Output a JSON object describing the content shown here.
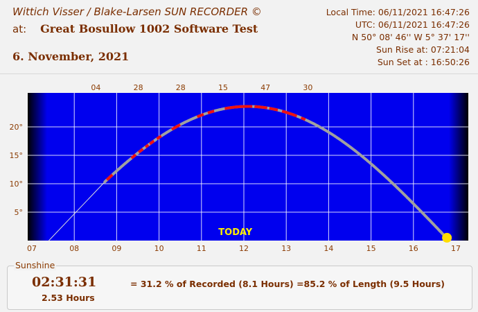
{
  "header": {
    "title_line1": "Wittich  Visser / Blake-Larsen SUN RECORDER ©",
    "at_label": "at:",
    "location": "Great Bosullow 1002  Software Test",
    "date": "6. November, 2021"
  },
  "info": {
    "local_time": "Local Time: 06/11/2021 16:47:26",
    "utc": "UTC: 06/11/2021 16:47:26",
    "coords": "N 50° 08' 46''     W 5° 37' 17''",
    "sunrise": "Sun Rise at:  07:21:04",
    "sunset": "Sun Set at :  16:50:26"
  },
  "chart_data": {
    "type": "line",
    "x_ticks": [
      "07",
      "08",
      "09",
      "10",
      "11",
      "12",
      "13",
      "14",
      "15",
      "16",
      "17"
    ],
    "y_ticks": [
      "5°",
      "10°",
      "15°",
      "20°"
    ],
    "top_labels": [
      {
        "hour": 9.0,
        "text": "04"
      },
      {
        "hour": 10.0,
        "text": "28"
      },
      {
        "hour": 11.0,
        "text": "28"
      },
      {
        "hour": 12.0,
        "text": "15"
      },
      {
        "hour": 13.0,
        "text": "47"
      },
      {
        "hour": 14.0,
        "text": "30"
      }
    ],
    "xlim": [
      7,
      17
    ],
    "ylim": [
      0,
      24
    ],
    "grid": true,
    "today_label": "TODAY",
    "colors": {
      "plot_bg": "#0000ee",
      "night": "#000000",
      "path": "#a0a0a0",
      "recorded": "#ee1111",
      "sun": "#ffdd00",
      "grid": "#ffffff",
      "axis_text": "#8a3a00",
      "today": "#ffee00"
    },
    "sun_path": {
      "rise_hour": 7.351,
      "set_hour": 16.841,
      "max_elevation": 23.6
    },
    "recorded_segments": [
      [
        8.77,
        8.9
      ],
      [
        9.35,
        9.45
      ],
      [
        9.52,
        9.62
      ],
      [
        9.68,
        9.75
      ],
      [
        9.78,
        9.88
      ],
      [
        9.95,
        10.05
      ],
      [
        10.3,
        10.5
      ],
      [
        10.9,
        11.05
      ],
      [
        11.15,
        11.3
      ],
      [
        11.55,
        12.2
      ],
      [
        12.25,
        12.55
      ],
      [
        12.6,
        12.8
      ],
      [
        12.9,
        13.25
      ],
      [
        13.35,
        13.45
      ]
    ],
    "current_sun": {
      "hour": 16.79,
      "elevation": 0.5
    }
  },
  "sunshine": {
    "legend": "Sunshine",
    "duration": "02:31:31",
    "hours": "2.53 Hours",
    "percent_text": "= 31.2 % of Recorded (8.1 Hours) =85.2 % of Length (9.5 Hours)"
  }
}
